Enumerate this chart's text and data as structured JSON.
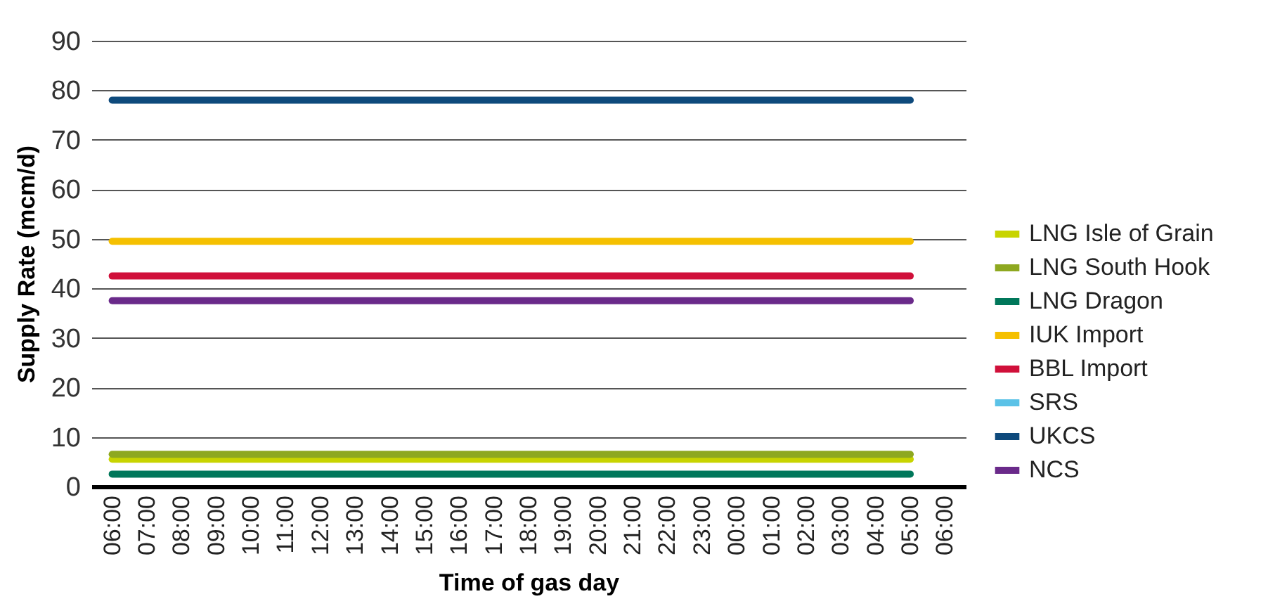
{
  "chart_data": {
    "type": "line",
    "xlabel": "Time of gas day",
    "ylabel": "Supply Rate (mcm/d)",
    "categories": [
      "06:00",
      "07:00",
      "08:00",
      "09:00",
      "10:00",
      "11:00",
      "12:00",
      "13:00",
      "14:00",
      "15:00",
      "16:00",
      "17:00",
      "18:00",
      "19:00",
      "20:00",
      "21:00",
      "22:00",
      "23:00",
      "00:00",
      "01:00",
      "02:00",
      "03:00",
      "04:00",
      "05:00",
      "06:00"
    ],
    "series": [
      {
        "name": "LNG Isle of Grain",
        "color": "#c8d400",
        "values": [
          5.5,
          5.5,
          5.5,
          5.5,
          5.5,
          5.5,
          5.5,
          5.5,
          5.5,
          5.5,
          5.5,
          5.5,
          5.5,
          5.5,
          5.5,
          5.5,
          5.5,
          5.5,
          5.5,
          5.5,
          5.5,
          5.5,
          5.5,
          5.5,
          null
        ]
      },
      {
        "name": "LNG South Hook",
        "color": "#8ea820",
        "values": [
          6.5,
          6.5,
          6.5,
          6.5,
          6.5,
          6.5,
          6.5,
          6.5,
          6.5,
          6.5,
          6.5,
          6.5,
          6.5,
          6.5,
          6.5,
          6.5,
          6.5,
          6.5,
          6.5,
          6.5,
          6.5,
          6.5,
          6.5,
          6.5,
          null
        ]
      },
      {
        "name": "LNG Dragon",
        "color": "#00775a",
        "values": [
          2.5,
          2.5,
          2.5,
          2.5,
          2.5,
          2.5,
          2.5,
          2.5,
          2.5,
          2.5,
          2.5,
          2.5,
          2.5,
          2.5,
          2.5,
          2.5,
          2.5,
          2.5,
          2.5,
          2.5,
          2.5,
          2.5,
          2.5,
          2.5,
          null
        ]
      },
      {
        "name": "IUK Import",
        "color": "#f5c000",
        "values": [
          49.5,
          49.5,
          49.5,
          49.5,
          49.5,
          49.5,
          49.5,
          49.5,
          49.5,
          49.5,
          49.5,
          49.5,
          49.5,
          49.5,
          49.5,
          49.5,
          49.5,
          49.5,
          49.5,
          49.5,
          49.5,
          49.5,
          49.5,
          49.5,
          null
        ]
      },
      {
        "name": "BBL Import",
        "color": "#d0103a",
        "values": [
          42.5,
          42.5,
          42.5,
          42.5,
          42.5,
          42.5,
          42.5,
          42.5,
          42.5,
          42.5,
          42.5,
          42.5,
          42.5,
          42.5,
          42.5,
          42.5,
          42.5,
          42.5,
          42.5,
          42.5,
          42.5,
          42.5,
          42.5,
          42.5,
          null
        ]
      },
      {
        "name": "SRS",
        "color": "#5bc2e7",
        "values": [
          null,
          null,
          null,
          null,
          null,
          null,
          null,
          null,
          null,
          null,
          null,
          null,
          null,
          null,
          null,
          null,
          null,
          null,
          null,
          null,
          null,
          null,
          null,
          null,
          null
        ]
      },
      {
        "name": "UKCS",
        "color": "#0e4a7c",
        "values": [
          78,
          78,
          78,
          78,
          78,
          78,
          78,
          78,
          78,
          78,
          78,
          78,
          78,
          78,
          78,
          78,
          78,
          78,
          78,
          78,
          78,
          78,
          78,
          78,
          null
        ]
      },
      {
        "name": "NCS",
        "color": "#6a2a8a",
        "values": [
          37.5,
          37.5,
          37.5,
          37.5,
          37.5,
          37.5,
          37.5,
          37.5,
          37.5,
          37.5,
          37.5,
          37.5,
          37.5,
          37.5,
          37.5,
          37.5,
          37.5,
          37.5,
          37.5,
          37.5,
          37.5,
          37.5,
          37.5,
          37.5,
          null
        ]
      }
    ],
    "ylim": [
      0,
      90
    ],
    "yticks": [
      0,
      10,
      20,
      30,
      40,
      50,
      60,
      70,
      80,
      90
    ],
    "grid": "y",
    "legend": "right",
    "marker": "none",
    "line_style": "solid"
  }
}
